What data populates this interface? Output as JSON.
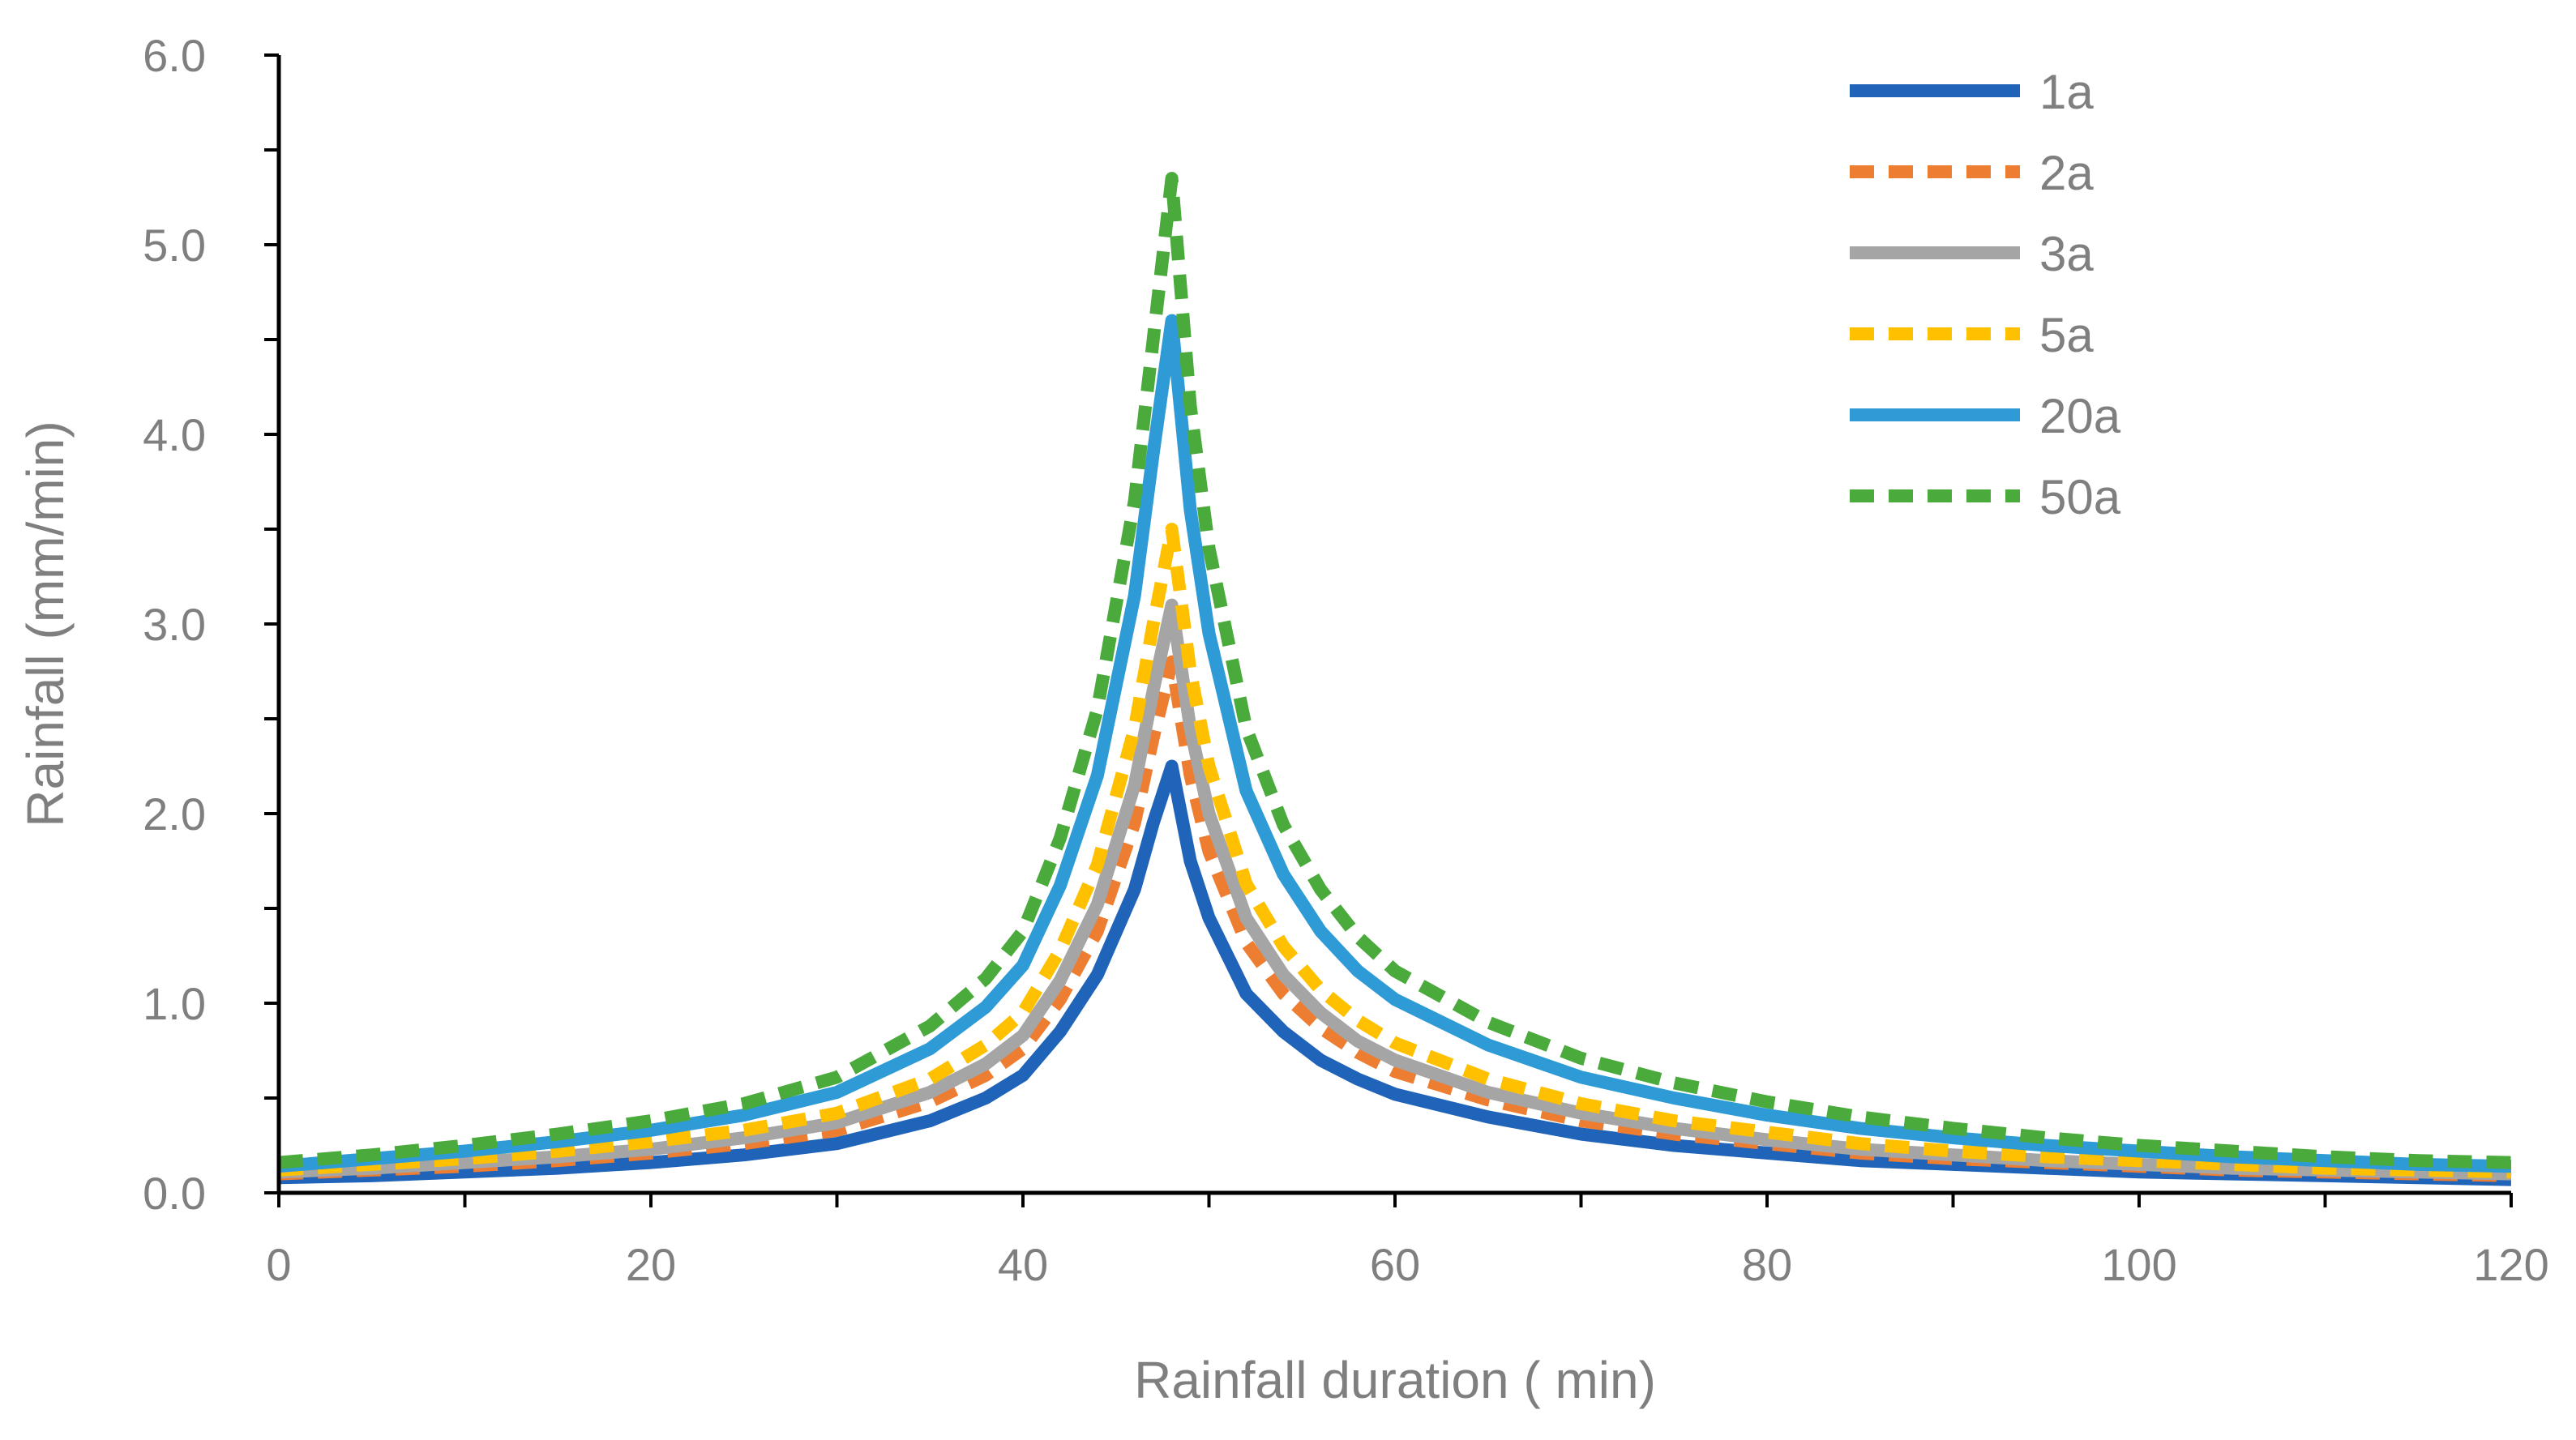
{
  "chart_data": {
    "type": "line",
    "title": "",
    "xlabel": "Rainfall duration ( min)",
    "ylabel": "Rainfall (mm/min)",
    "xlim": [
      0,
      120
    ],
    "ylim": [
      0,
      6
    ],
    "x_ticks": [
      0,
      20,
      40,
      60,
      80,
      100,
      120
    ],
    "x_tick_labels": [
      "0",
      "20",
      "40",
      "60",
      "80",
      "100",
      "120"
    ],
    "y_ticks": [
      0,
      1,
      2,
      3,
      4,
      5,
      6
    ],
    "y_tick_labels": [
      "0.0",
      "1.0",
      "2.0",
      "3.0",
      "4.0",
      "5.0",
      "6.0"
    ],
    "grid": false,
    "legend_position": "top-right",
    "x": [
      0,
      5,
      10,
      15,
      20,
      25,
      30,
      35,
      38,
      40,
      42,
      44,
      46,
      47,
      48,
      49,
      50,
      52,
      54,
      56,
      58,
      60,
      65,
      70,
      75,
      80,
      85,
      90,
      95,
      100,
      105,
      110,
      115,
      120
    ],
    "series": [
      {
        "name": "1a",
        "color": "#1f64b8",
        "dash": "solid",
        "values": [
          0.08,
          0.09,
          0.11,
          0.13,
          0.16,
          0.2,
          0.26,
          0.38,
          0.5,
          0.62,
          0.85,
          1.15,
          1.6,
          1.95,
          2.25,
          1.75,
          1.45,
          1.05,
          0.85,
          0.7,
          0.6,
          0.52,
          0.4,
          0.31,
          0.25,
          0.21,
          0.17,
          0.15,
          0.13,
          0.11,
          0.1,
          0.09,
          0.08,
          0.07
        ]
      },
      {
        "name": "2a",
        "color": "#ed7d31",
        "dash": "dashed",
        "values": [
          0.1,
          0.12,
          0.14,
          0.17,
          0.21,
          0.26,
          0.33,
          0.48,
          0.62,
          0.76,
          1.02,
          1.38,
          1.95,
          2.4,
          2.8,
          2.2,
          1.8,
          1.32,
          1.05,
          0.87,
          0.74,
          0.64,
          0.49,
          0.38,
          0.31,
          0.26,
          0.21,
          0.18,
          0.16,
          0.14,
          0.12,
          0.11,
          0.1,
          0.09
        ]
      },
      {
        "name": "3a",
        "color": "#a5a5a5",
        "dash": "solid",
        "values": [
          0.11,
          0.13,
          0.16,
          0.19,
          0.23,
          0.29,
          0.37,
          0.53,
          0.68,
          0.83,
          1.12,
          1.52,
          2.15,
          2.65,
          3.1,
          2.45,
          2.0,
          1.45,
          1.15,
          0.95,
          0.8,
          0.7,
          0.53,
          0.42,
          0.34,
          0.28,
          0.23,
          0.2,
          0.17,
          0.15,
          0.13,
          0.12,
          0.11,
          0.1
        ]
      },
      {
        "name": "5a",
        "color": "#ffc000",
        "dash": "dashed",
        "values": [
          0.12,
          0.15,
          0.18,
          0.22,
          0.27,
          0.33,
          0.42,
          0.6,
          0.78,
          0.95,
          1.28,
          1.73,
          2.45,
          3.0,
          3.5,
          2.75,
          2.25,
          1.63,
          1.3,
          1.07,
          0.91,
          0.79,
          0.6,
          0.47,
          0.38,
          0.32,
          0.26,
          0.22,
          0.19,
          0.17,
          0.15,
          0.13,
          0.12,
          0.11
        ]
      },
      {
        "name": "20a",
        "color": "#2e9bd6",
        "dash": "solid",
        "values": [
          0.14,
          0.18,
          0.22,
          0.27,
          0.33,
          0.41,
          0.53,
          0.76,
          0.98,
          1.2,
          1.62,
          2.2,
          3.15,
          3.9,
          4.6,
          3.6,
          2.95,
          2.12,
          1.68,
          1.38,
          1.17,
          1.02,
          0.78,
          0.61,
          0.5,
          0.41,
          0.34,
          0.29,
          0.25,
          0.22,
          0.19,
          0.17,
          0.15,
          0.14
        ]
      },
      {
        "name": "50a",
        "color": "#4aaa3c",
        "dash": "dashed",
        "values": [
          0.16,
          0.2,
          0.25,
          0.31,
          0.38,
          0.47,
          0.61,
          0.88,
          1.13,
          1.38,
          1.87,
          2.55,
          3.65,
          4.5,
          5.35,
          4.15,
          3.4,
          2.45,
          1.94,
          1.6,
          1.35,
          1.17,
          0.9,
          0.71,
          0.58,
          0.48,
          0.4,
          0.34,
          0.29,
          0.25,
          0.22,
          0.19,
          0.17,
          0.16
        ]
      }
    ]
  }
}
